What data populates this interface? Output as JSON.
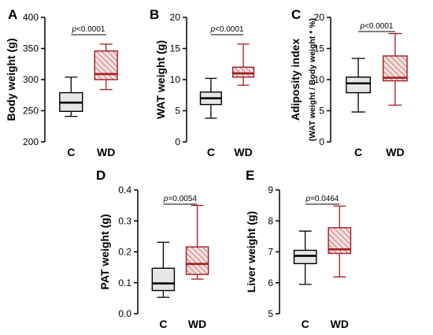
{
  "colors": {
    "control_fill": "#e6e6e6",
    "control_stroke": "#000000",
    "wd_fill": "#f4dede",
    "wd_stroke": "#a11d21",
    "wd_hatch": "#b44a4a",
    "axis": "#000000",
    "text": "#000000"
  },
  "chart_data": [
    {
      "type": "boxplot",
      "panel": "A",
      "ylabel": "Body weight (g)",
      "ylim": [
        200,
        400
      ],
      "yticks": [
        "200",
        "250",
        "300",
        "350",
        "400"
      ],
      "categories": [
        "C",
        "WD"
      ],
      "boxes": [
        {
          "min": 241,
          "q1": 249,
          "median": 263,
          "q3": 279,
          "max": 304
        },
        {
          "min": 284,
          "q1": 300,
          "median": 309,
          "q3": 346,
          "max": 357
        }
      ],
      "significance": "p<0.0001"
    },
    {
      "type": "boxplot",
      "panel": "B",
      "ylabel": "WAT weight (g)",
      "ylim": [
        0,
        20
      ],
      "yticks": [
        "0",
        "5",
        "10",
        "15",
        "20"
      ],
      "categories": [
        "C",
        "WD"
      ],
      "boxes": [
        {
          "min": 3.8,
          "q1": 6.0,
          "median": 7.0,
          "q3": 8.0,
          "max": 10.2
        },
        {
          "min": 9.1,
          "q1": 10.4,
          "median": 11.0,
          "q3": 12.0,
          "max": 15.7
        }
      ],
      "significance": "p<0.0001"
    },
    {
      "type": "boxplot",
      "panel": "C",
      "ylabel": "Adiposity index",
      "ylabel2": "(WAT weight / Body weight * %)",
      "ylim": [
        0,
        20
      ],
      "yticks": [
        "0",
        "5",
        "10",
        "15",
        "20"
      ],
      "categories": [
        "C",
        "WD"
      ],
      "boxes": [
        {
          "min": 4.8,
          "q1": 7.9,
          "median": 9.4,
          "q3": 10.4,
          "max": 13.4
        },
        {
          "min": 5.9,
          "q1": 9.8,
          "median": 10.3,
          "q3": 13.8,
          "max": 17.4
        }
      ],
      "significance": "p<0.0001"
    },
    {
      "type": "boxplot",
      "panel": "D",
      "ylabel": "PAT weight (g)",
      "ylim": [
        0,
        0.4
      ],
      "yticks": [
        "0.0",
        "0.1",
        "0.2",
        "0.3",
        "0.4"
      ],
      "categories": [
        "C",
        "WD"
      ],
      "boxes": [
        {
          "min": 0.053,
          "q1": 0.075,
          "median": 0.098,
          "q3": 0.147,
          "max": 0.231
        },
        {
          "min": 0.112,
          "q1": 0.127,
          "median": 0.161,
          "q3": 0.216,
          "max": 0.35
        }
      ],
      "significance": "p=0.0054"
    },
    {
      "type": "boxplot",
      "panel": "E",
      "ylabel": "Liver weight (g)",
      "ylim": [
        5,
        9
      ],
      "yticks": [
        "5",
        "6",
        "7",
        "8",
        "9"
      ],
      "categories": [
        "C",
        "WD"
      ],
      "boxes": [
        {
          "min": 5.95,
          "q1": 6.62,
          "median": 6.87,
          "q3": 7.05,
          "max": 7.67
        },
        {
          "min": 6.19,
          "q1": 6.95,
          "median": 7.08,
          "q3": 7.78,
          "max": 8.48
        }
      ],
      "significance": "p=0.0464"
    }
  ]
}
